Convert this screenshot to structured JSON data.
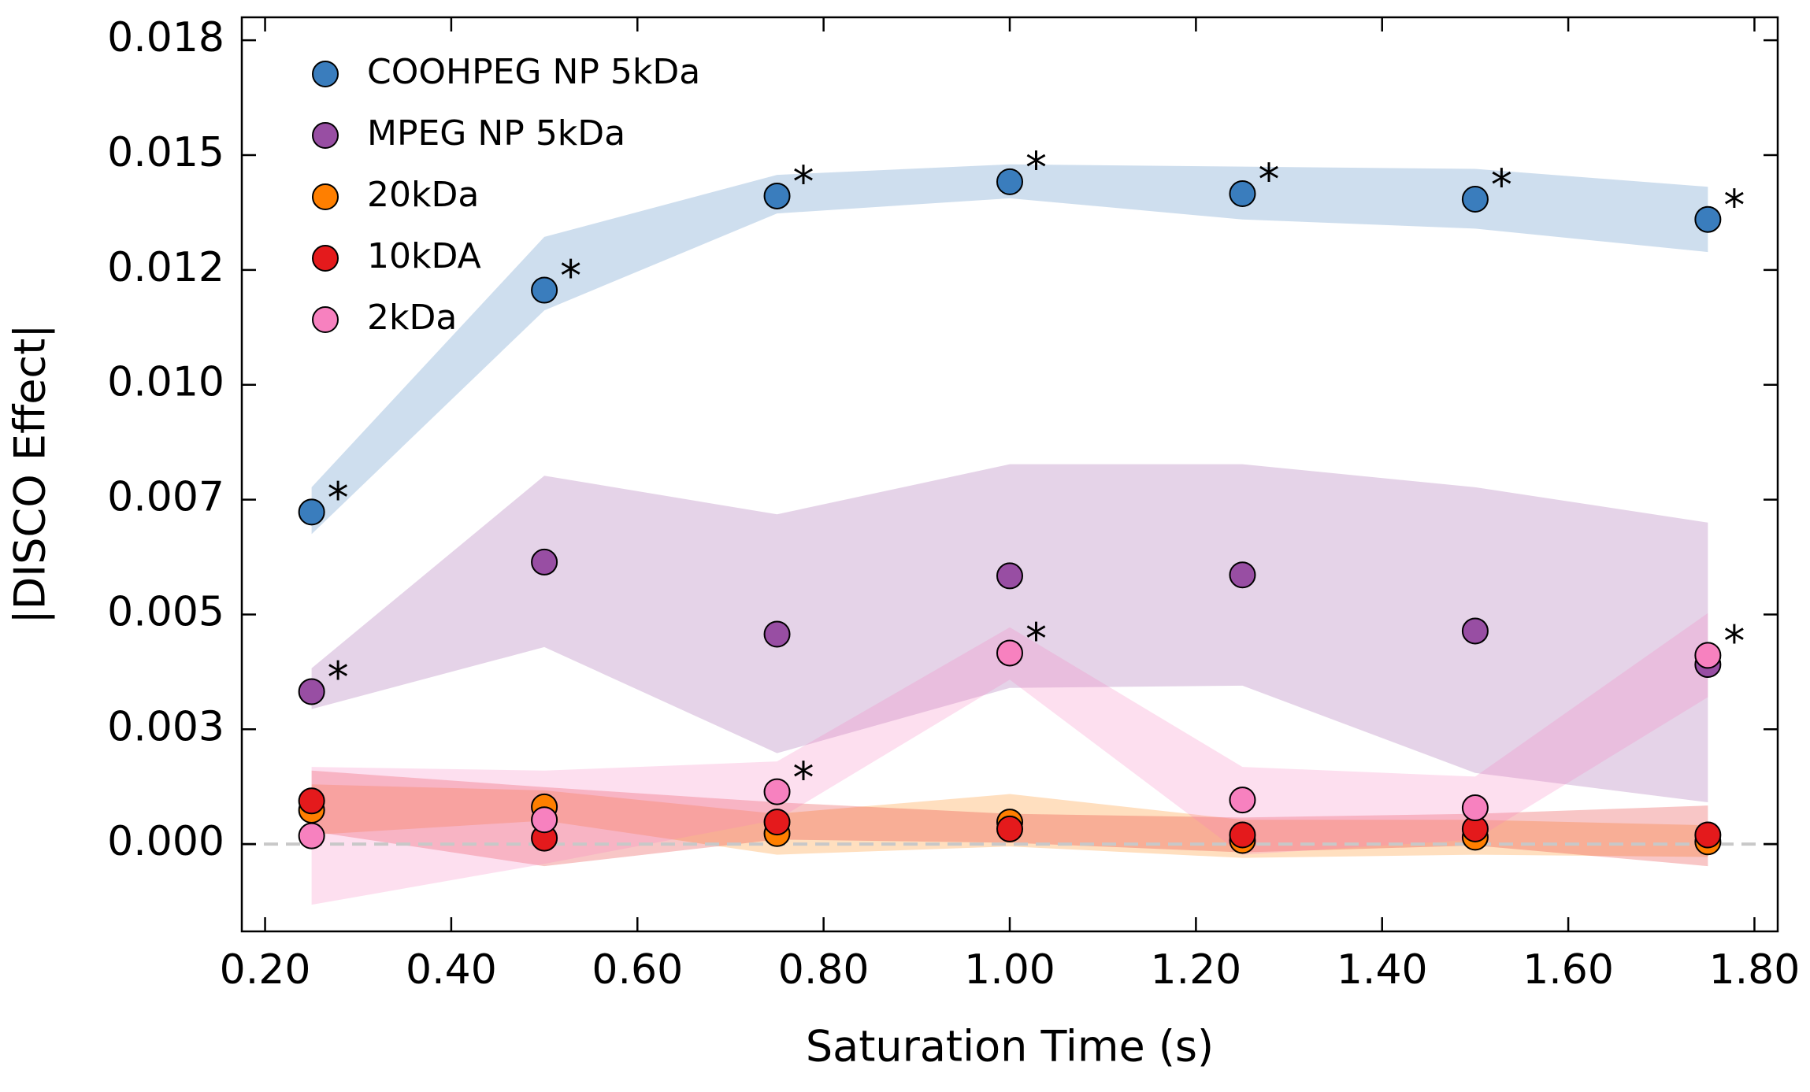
{
  "chart_data": {
    "type": "scatter",
    "xlabel": "Saturation Time (s)",
    "ylabel": "|DISCO Effect|",
    "xlim": [
      0.175,
      1.825
    ],
    "ylim": [
      -0.0019,
      0.018
    ],
    "xticks": [
      {
        "value": 0.2,
        "label": "0.20"
      },
      {
        "value": 0.4,
        "label": "0.40"
      },
      {
        "value": 0.6,
        "label": "0.60"
      },
      {
        "value": 0.8,
        "label": "0.80"
      },
      {
        "value": 1.0,
        "label": "1.00"
      },
      {
        "value": 1.2,
        "label": "1.20"
      },
      {
        "value": 1.4,
        "label": "1.40"
      },
      {
        "value": 1.6,
        "label": "1.60"
      },
      {
        "value": 1.8,
        "label": "1.80"
      }
    ],
    "yticks": [
      {
        "value": 0,
        "label": "0.000"
      },
      {
        "value": 0.0025,
        "label": "0.003"
      },
      {
        "value": 0.005,
        "label": "0.005"
      },
      {
        "value": 0.0075,
        "label": "0.007"
      },
      {
        "value": 0.01,
        "label": "0.010"
      },
      {
        "value": 0.0125,
        "label": "0.012"
      },
      {
        "value": 0.015,
        "label": "0.015"
      },
      {
        "value": 0.0175,
        "label": "0.018"
      }
    ],
    "zero_line": true,
    "legend": "upper left",
    "x": [
      0.25,
      0.5,
      0.75,
      1.0,
      1.25,
      1.5,
      1.75
    ],
    "series": [
      {
        "name": "COOHPEG NP 5kDa",
        "color": "#3a7dbd",
        "values": [
          0.00723,
          0.01206,
          0.01411,
          0.01442,
          0.01416,
          0.01404,
          0.0136
        ],
        "lower": [
          0.00675,
          0.01162,
          0.01373,
          0.01406,
          0.0136,
          0.0134,
          0.01289
        ],
        "upper": [
          0.00777,
          0.01322,
          0.01457,
          0.0148,
          0.01475,
          0.0147,
          0.01431
        ],
        "annotations": [
          "*",
          "*",
          "*",
          "*",
          "*",
          "*",
          "*"
        ]
      },
      {
        "name": "MPEG NP 5kDa",
        "color": "#984ea3",
        "values": [
          0.00332,
          0.00614,
          0.00457,
          0.00584,
          0.00586,
          0.00464,
          0.00391
        ],
        "lower": [
          0.00294,
          0.00429,
          0.00198,
          0.0034,
          0.00345,
          0.00155,
          0.00091
        ],
        "upper": [
          0.00383,
          0.00802,
          0.00718,
          0.00827,
          0.00827,
          0.00777,
          0.007
        ],
        "annotations": [
          "*",
          null,
          null,
          null,
          null,
          null,
          null
        ]
      },
      {
        "name": "20kDa",
        "color": "#ff7f00",
        "values": [
          0.00074,
          0.00081,
          0.00023,
          0.00048,
          8e-05,
          0.00015,
          5e-05
        ],
        "lower": [
          0.0002,
          0.00051,
          -0.00023,
          -5e-05,
          -0.0003,
          -0.00023,
          -0.00028
        ],
        "upper": [
          0.0013,
          0.00117,
          0.00066,
          0.00109,
          0.00053,
          0.00053,
          0.00041
        ],
        "annotations": [
          null,
          null,
          null,
          null,
          null,
          null,
          null
        ]
      },
      {
        "name": "10kDA",
        "color": "#e41a1c",
        "values": [
          0.00094,
          0.00013,
          0.00048,
          0.00033,
          0.0002,
          0.00033,
          0.0002
        ],
        "lower": [
          0.00028,
          -0.00048,
          0.0001,
          3e-05,
          -0.00018,
          -3e-05,
          -0.00048
        ],
        "upper": [
          0.0016,
          0.00124,
          0.00091,
          0.00066,
          0.00058,
          0.00066,
          0.00084
        ],
        "annotations": [
          null,
          null,
          null,
          null,
          null,
          null,
          null
        ]
      },
      {
        "name": "2kDa",
        "color": "#f781bf",
        "values": [
          0.00018,
          0.00053,
          0.00114,
          0.00416,
          0.00096,
          0.00079,
          0.00411
        ],
        "lower": [
          -0.00132,
          -0.00043,
          0.00053,
          0.00358,
          -0.00023,
          0.0001,
          0.0032
        ],
        "upper": [
          0.00168,
          0.0016,
          0.0018,
          0.00472,
          0.00168,
          0.00147,
          0.00503
        ],
        "annotations": [
          null,
          null,
          "*",
          "*",
          null,
          null,
          "*"
        ]
      }
    ]
  }
}
